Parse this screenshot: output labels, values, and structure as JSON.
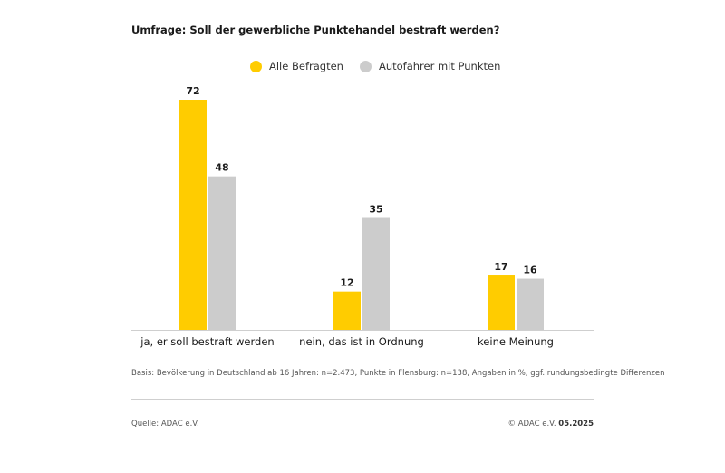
{
  "title": "Umfrage: Soll der gewerbliche Punktehandel bestraft werden?",
  "colors": {
    "series1": "#ffcc00",
    "series2": "#cccccc",
    "axis": "#cfcfcf"
  },
  "chart_data": {
    "type": "bar",
    "title": "Umfrage: Soll der gewerbliche Punktehandel bestraft werden?",
    "categories": [
      "ja, er soll bestraft werden",
      "nein, das ist in Ordnung",
      "keine Meinung"
    ],
    "series": [
      {
        "name": "Alle Befragten",
        "values": [
          72,
          12,
          17
        ]
      },
      {
        "name": "Autofahrer mit Punkten",
        "values": [
          48,
          35,
          16
        ]
      }
    ],
    "ylim": [
      0,
      72
    ],
    "grid": false,
    "legend": "top-center",
    "data_labels": true
  },
  "footer": {
    "basis": "Basis: Bevölkerung in Deutschland ab 16 Jahren: n=2.473, Punkte in Flensburg: n=138, Angaben in %, ggf. rundungsbedingte Differenzen",
    "source": "Quelle: ADAC e.V.",
    "copyright": "© ADAC e.V.",
    "date": "05.2025"
  }
}
